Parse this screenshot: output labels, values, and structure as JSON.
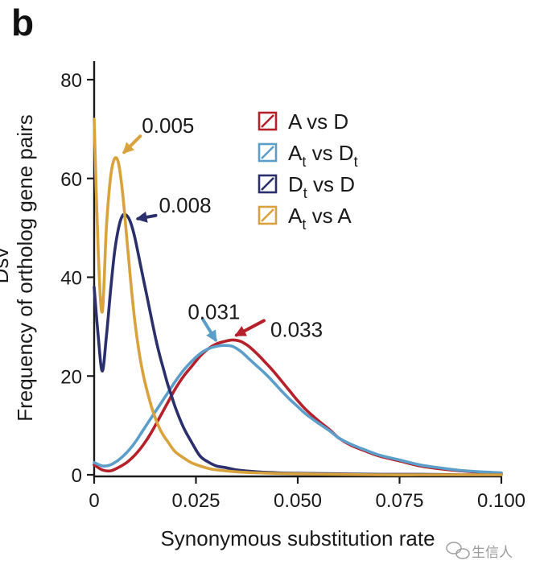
{
  "panel_label": "b",
  "watermark": {
    "text": "生信人"
  },
  "clipped_left_text": "Dsv",
  "chart_data": {
    "type": "line",
    "title": "",
    "xlabel": "Synonymous substitution rate",
    "ylabel": "Frequency of ortholog gene pairs",
    "xlim": [
      0,
      0.1
    ],
    "ylim": [
      0,
      80
    ],
    "x_ticks": [
      0,
      0.025,
      0.05,
      0.075,
      0.1
    ],
    "x_tick_labels": [
      "0",
      "0.025",
      "0.050",
      "0.075",
      "0.100"
    ],
    "y_ticks": [
      0,
      20,
      40,
      60,
      80
    ],
    "y_tick_labels": [
      "0",
      "20",
      "40",
      "60",
      "80"
    ],
    "grid": false,
    "legend_position": "top-right",
    "series": [
      {
        "name": "A vs D",
        "name_main": "A vs D",
        "name_sub1": "",
        "name_mid": "",
        "name_sub2": "",
        "color": "#b5202a",
        "x": [
          0,
          0.002,
          0.004,
          0.006,
          0.008,
          0.01,
          0.012,
          0.014,
          0.016,
          0.018,
          0.02,
          0.022,
          0.024,
          0.026,
          0.028,
          0.03,
          0.032,
          0.034,
          0.036,
          0.038,
          0.04,
          0.042,
          0.044,
          0.046,
          0.048,
          0.05,
          0.052,
          0.055,
          0.058,
          0.06,
          0.063,
          0.066,
          0.07,
          0.075,
          0.08,
          0.085,
          0.09,
          0.095,
          0.1
        ],
        "y": [
          2,
          1,
          0.8,
          1.5,
          2.5,
          4,
          6,
          8.5,
          11.5,
          14.5,
          17.5,
          20,
          22,
          24,
          25.5,
          26.5,
          27,
          27.3,
          27,
          26,
          24.5,
          22.8,
          21,
          19,
          17,
          15,
          13.2,
          11,
          9,
          7.5,
          6,
          5,
          3.8,
          2.8,
          1.8,
          1.2,
          0.8,
          0.5,
          0.3
        ]
      },
      {
        "name": "At vs Dt",
        "name_main": "A",
        "name_sub1": "t",
        "name_mid": " vs D",
        "name_sub2": "t",
        "color": "#5b9ec9",
        "x": [
          0,
          0.002,
          0.004,
          0.006,
          0.008,
          0.01,
          0.012,
          0.014,
          0.016,
          0.018,
          0.02,
          0.022,
          0.024,
          0.026,
          0.028,
          0.03,
          0.032,
          0.034,
          0.036,
          0.038,
          0.04,
          0.042,
          0.044,
          0.046,
          0.048,
          0.05,
          0.052,
          0.055,
          0.058,
          0.06,
          0.063,
          0.066,
          0.07,
          0.075,
          0.08,
          0.085,
          0.09,
          0.095,
          0.1
        ],
        "y": [
          2.5,
          1.8,
          2,
          3,
          4.5,
          6.5,
          9,
          11.5,
          14,
          16.5,
          19,
          21.2,
          23,
          24.5,
          25.5,
          26,
          26.2,
          26,
          25,
          23.5,
          22,
          20.5,
          18.8,
          17,
          15.3,
          13.8,
          12.3,
          10.5,
          8.8,
          7.5,
          6.2,
          5.2,
          4,
          3,
          2,
          1.4,
          0.9,
          0.6,
          0.4
        ]
      },
      {
        "name": "Dt vs D",
        "name_main": "D",
        "name_sub1": "t",
        "name_mid": " vs D",
        "name_sub2": "",
        "color": "#2b2f6b",
        "x": [
          0,
          0.001,
          0.002,
          0.003,
          0.004,
          0.005,
          0.006,
          0.007,
          0.008,
          0.009,
          0.01,
          0.011,
          0.012,
          0.013,
          0.014,
          0.015,
          0.016,
          0.017,
          0.018,
          0.019,
          0.02,
          0.022,
          0.024,
          0.026,
          0.028,
          0.03,
          0.032,
          0.035,
          0.04,
          0.045,
          0.05,
          0.06,
          0.07,
          0.08,
          0.09,
          0.1
        ],
        "y": [
          38,
          28,
          21,
          28,
          37,
          45,
          50,
          52.5,
          52.5,
          51,
          48,
          44,
          40,
          36,
          32,
          28,
          24.5,
          21.5,
          18.5,
          16,
          13.5,
          9.5,
          6.5,
          3.8,
          2.6,
          1.8,
          1.5,
          1.0,
          0.6,
          0.4,
          0.3,
          0.2,
          0.1,
          0.1,
          0,
          0
        ]
      },
      {
        "name": "At vs A",
        "name_main": "A",
        "name_sub1": "t",
        "name_mid": " vs A",
        "name_sub2": "",
        "color": "#d8a23c",
        "x": [
          0,
          0.001,
          0.002,
          0.003,
          0.004,
          0.005,
          0.006,
          0.007,
          0.008,
          0.009,
          0.01,
          0.011,
          0.012,
          0.013,
          0.014,
          0.015,
          0.016,
          0.017,
          0.018,
          0.019,
          0.02,
          0.022,
          0.024,
          0.026,
          0.028,
          0.03,
          0.035,
          0.04,
          0.05,
          0.06,
          0.07,
          0.08,
          0.09,
          0.1
        ],
        "y": [
          72,
          45,
          33,
          50,
          60,
          64,
          63,
          57,
          48,
          39,
          31,
          25,
          20.5,
          17,
          14,
          11.5,
          9.5,
          8,
          6.8,
          5.6,
          4.6,
          3.4,
          2.4,
          1.8,
          1.3,
          1.0,
          0.6,
          0.4,
          0.2,
          0.1,
          0,
          0,
          0,
          0
        ]
      }
    ],
    "annotations": [
      {
        "text": "0.005",
        "series": "At vs A",
        "x": 0.005,
        "y": 64
      },
      {
        "text": "0.008",
        "series": "Dt vs D",
        "x": 0.008,
        "y": 52.5
      },
      {
        "text": "0.031",
        "series": "At vs Dt",
        "x": 0.031,
        "y": 26
      },
      {
        "text": "0.033",
        "series": "A vs D",
        "x": 0.033,
        "y": 27.3
      }
    ]
  }
}
